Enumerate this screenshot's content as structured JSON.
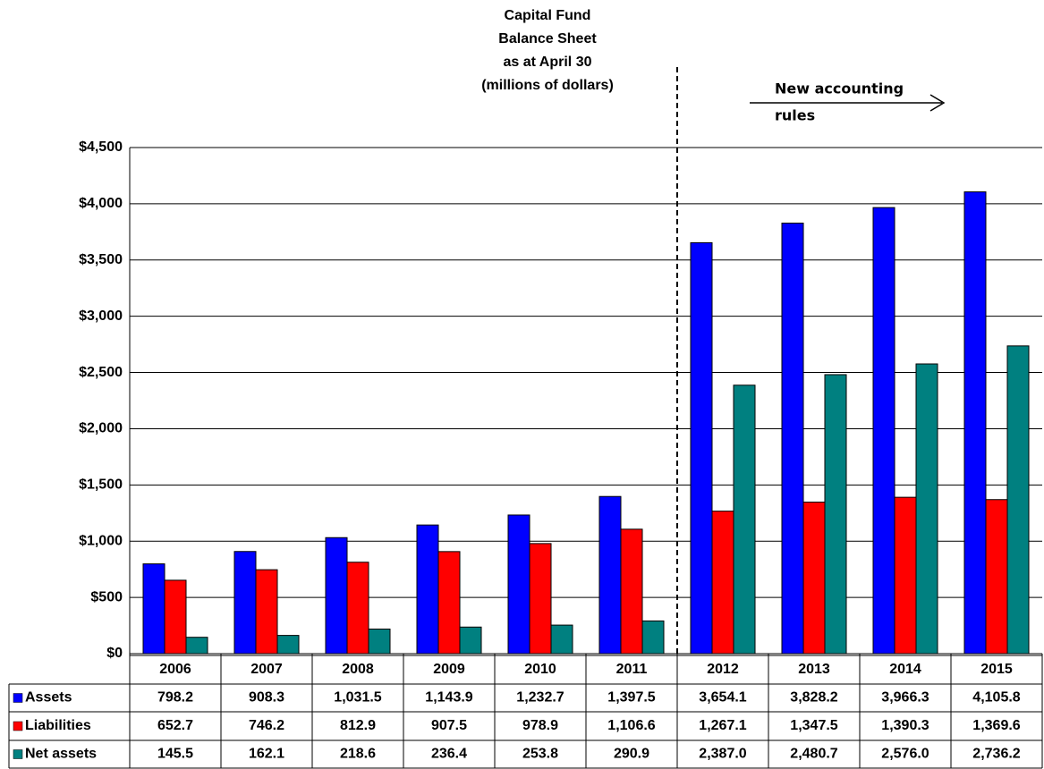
{
  "chart_data": {
    "type": "bar",
    "title": [
      "Capital Fund",
      "Balance Sheet",
      "as at April 30",
      "(millions of dollars)"
    ],
    "annotation": [
      "New accounting",
      "rules"
    ],
    "categories": [
      "2006",
      "2007",
      "2008",
      "2009",
      "2010",
      "2011",
      "2012",
      "2013",
      "2014",
      "2015"
    ],
    "series": [
      {
        "name": "Assets",
        "color": "#0000ff",
        "values": [
          798.2,
          908.3,
          1031.5,
          1143.9,
          1232.7,
          1397.5,
          3654.1,
          3828.2,
          3966.3,
          4105.8
        ],
        "value_labels": [
          "798.2",
          "908.3",
          "1,031.5",
          "1,143.9",
          "1,232.7",
          "1,397.5",
          "3,654.1",
          "3,828.2",
          "3,966.3",
          "4,105.8"
        ]
      },
      {
        "name": "Liabilities",
        "color": "#ff0000",
        "values": [
          652.7,
          746.2,
          812.9,
          907.5,
          978.9,
          1106.6,
          1267.1,
          1347.5,
          1390.3,
          1369.6
        ],
        "value_labels": [
          "652.7",
          "746.2",
          "812.9",
          "907.5",
          "978.9",
          "1,106.6",
          "1,267.1",
          "1,347.5",
          "1,390.3",
          "1,369.6"
        ]
      },
      {
        "name": "Net assets",
        "color": "#008080",
        "values": [
          145.5,
          162.1,
          218.6,
          236.4,
          253.8,
          290.9,
          2387.0,
          2480.7,
          2576.0,
          2736.2
        ],
        "value_labels": [
          "145.5",
          "162.1",
          "218.6",
          "236.4",
          "253.8",
          "290.9",
          "2,387.0",
          "2,480.7",
          "2,576.0",
          "2,736.2"
        ]
      }
    ],
    "ylim": [
      0,
      4500
    ],
    "yticks": [
      {
        "value": 0,
        "label": "$0"
      },
      {
        "value": 500,
        "label": "$500"
      },
      {
        "value": 1000,
        "label": "$1,000"
      },
      {
        "value": 1500,
        "label": "$1,500"
      },
      {
        "value": 2000,
        "label": "$2,000"
      },
      {
        "value": 2500,
        "label": "$2,500"
      },
      {
        "value": 3000,
        "label": "$3,000"
      },
      {
        "value": 3500,
        "label": "$3,500"
      },
      {
        "value": 4000,
        "label": "$4,000"
      },
      {
        "value": 4500,
        "label": "$4,500"
      }
    ],
    "grid": true
  }
}
